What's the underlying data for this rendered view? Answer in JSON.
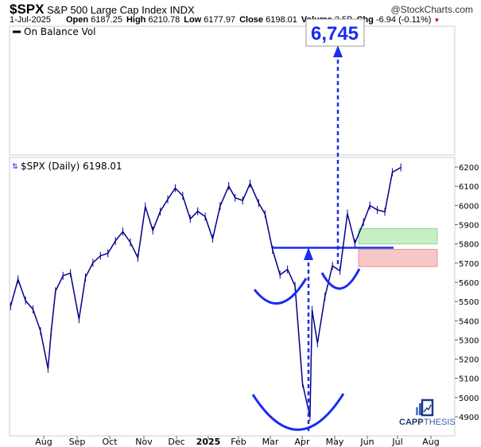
{
  "header": {
    "symbol": "$SPX",
    "name": "S&P 500 Large Cap Index",
    "exchange": "INDX",
    "brand": "@StockCharts.com",
    "date": "1-Jul-2025",
    "open_label": "Open",
    "open": "6187.25",
    "high_label": "High",
    "high": "6210.78",
    "low_label": "Low",
    "low": "6177.97",
    "close_label": "Close",
    "close": "6198.01",
    "volume_label": "Volume",
    "volume": "2.5B",
    "chg_label": "Chg",
    "chg": "-6.94 (-0.11%)"
  },
  "indicator_panel": {
    "legend": "On Balance Vol"
  },
  "price_legend": "$SPX (Daily) 6198.01",
  "target_label": "6,745",
  "logo": {
    "text_bold": "CAPP",
    "text_light": "THESIS"
  },
  "colors": {
    "price": "#00008b",
    "annotation": "#1a2cf0",
    "green_zone": "#c6efc6",
    "red_zone": "#f7c6c6"
  },
  "chart_data": {
    "type": "line",
    "title": "$SPX (Daily) 6198.01",
    "ylim": [
      4830,
      6250
    ],
    "y_ticks": [
      6200,
      6100,
      6000,
      5900,
      5800,
      5700,
      5600,
      5500,
      5400,
      5300,
      5200,
      5100,
      5000,
      4900
    ],
    "x_ticks": [
      "Aug",
      "Sep",
      "Oct",
      "Nov",
      "Dec",
      "2025",
      "Feb",
      "Mar",
      "Apr",
      "May",
      "Jun",
      "Jul",
      "Aug"
    ],
    "grid": false,
    "series": [
      {
        "values": [
          [
            "2024-07-01",
            5475
          ],
          [
            "2024-07-08",
            5615
          ],
          [
            "2024-07-15",
            5505
          ],
          [
            "2024-07-22",
            5459
          ],
          [
            "2024-07-29",
            5346
          ],
          [
            "2024-08-05",
            5150
          ],
          [
            "2024-08-08",
            5344
          ],
          [
            "2024-08-12",
            5554
          ],
          [
            "2024-08-19",
            5634
          ],
          [
            "2024-08-26",
            5648
          ],
          [
            "2024-09-03",
            5408
          ],
          [
            "2024-09-09",
            5626
          ],
          [
            "2024-09-16",
            5702
          ],
          [
            "2024-09-23",
            5738
          ],
          [
            "2024-09-30",
            5751
          ],
          [
            "2024-10-07",
            5815
          ],
          [
            "2024-10-14",
            5864
          ],
          [
            "2024-10-21",
            5808
          ],
          [
            "2024-10-28",
            5728
          ],
          [
            "2024-11-04",
            5995
          ],
          [
            "2024-11-11",
            5870
          ],
          [
            "2024-11-18",
            5969
          ],
          [
            "2024-11-25",
            6032
          ],
          [
            "2024-12-02",
            6090
          ],
          [
            "2024-12-09",
            6051
          ],
          [
            "2024-12-16",
            5930
          ],
          [
            "2024-12-23",
            5970
          ],
          [
            "2024-12-30",
            5942
          ],
          [
            "2025-01-06",
            5827
          ],
          [
            "2025-01-13",
            5997
          ],
          [
            "2025-01-21",
            6101
          ],
          [
            "2025-01-27",
            6040
          ],
          [
            "2025-02-03",
            6026
          ],
          [
            "2025-02-10",
            6114
          ],
          [
            "2025-02-18",
            6013
          ],
          [
            "2025-02-24",
            5955
          ],
          [
            "2025-03-03",
            5770
          ],
          [
            "2025-03-10",
            5639
          ],
          [
            "2025-03-17",
            5667
          ],
          [
            "2025-03-24",
            5581
          ],
          [
            "2025-03-31",
            5074
          ],
          [
            "2025-04-07",
            4900
          ],
          [
            "2025-04-09",
            5456
          ],
          [
            "2025-04-14",
            5283
          ],
          [
            "2025-04-21",
            5525
          ],
          [
            "2025-04-28",
            5686
          ],
          [
            "2025-05-05",
            5660
          ],
          [
            "2025-05-12",
            5958
          ],
          [
            "2025-05-19",
            5803
          ],
          [
            "2025-05-27",
            5912
          ],
          [
            "2025-06-02",
            6000
          ],
          [
            "2025-06-09",
            5977
          ],
          [
            "2025-06-16",
            5967
          ],
          [
            "2025-06-23",
            6173
          ],
          [
            "2025-07-01",
            6198
          ]
        ]
      }
    ],
    "annotations": {
      "neckline": 5780,
      "target": 6745,
      "green_zone": [
        5800,
        5880
      ],
      "red_zone": [
        5690,
        5780
      ]
    }
  }
}
